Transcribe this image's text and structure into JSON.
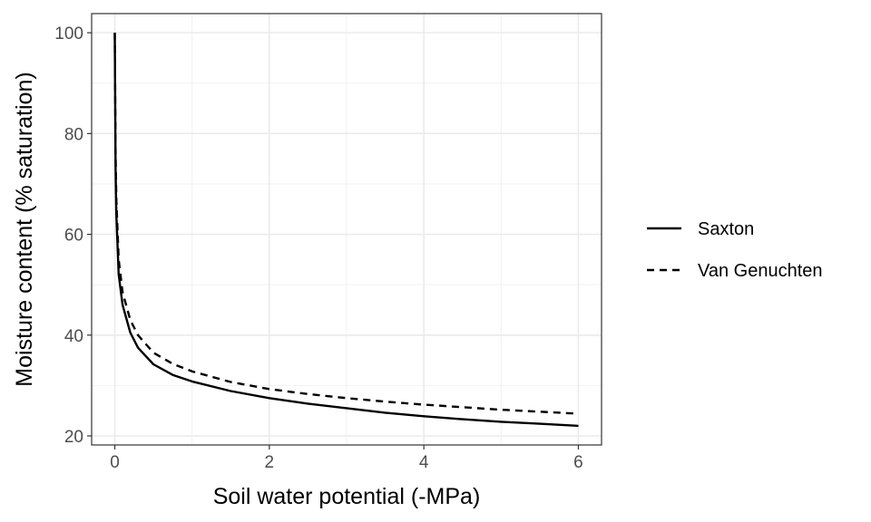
{
  "chart_data": {
    "type": "line",
    "title": "",
    "xlabel": "Soil water potential (-MPa)",
    "ylabel": "Moisture content (% saturation)",
    "xlim": [
      -0.3,
      6.3
    ],
    "ylim": [
      18.2,
      103.8
    ],
    "x_ticks": [
      0,
      2,
      4,
      6
    ],
    "x_tick_labels": [
      "0",
      "2",
      "4",
      "6"
    ],
    "y_ticks": [
      20,
      40,
      60,
      80,
      100
    ],
    "y_tick_labels": [
      "20",
      "40",
      "60",
      "80",
      "100"
    ],
    "grid": true,
    "legend_position": "right",
    "series": [
      {
        "name": "Saxton",
        "line_style": "solid",
        "color": "#000000",
        "x": [
          0,
          0.01,
          0.02,
          0.05,
          0.1,
          0.2,
          0.3,
          0.5,
          0.75,
          1,
          1.5,
          2,
          2.5,
          3,
          3.5,
          4,
          4.5,
          5,
          5.5,
          6
        ],
        "y": [
          100,
          73,
          64,
          52,
          46,
          40.5,
          37.5,
          34.2,
          32.1,
          30.8,
          28.9,
          27.5,
          26.4,
          25.5,
          24.6,
          23.9,
          23.3,
          22.8,
          22.4,
          22.0
        ]
      },
      {
        "name": "Van Genuchten",
        "line_style": "dashed",
        "color": "#000000",
        "x": [
          0,
          0.01,
          0.02,
          0.05,
          0.1,
          0.2,
          0.3,
          0.5,
          0.75,
          1,
          1.5,
          2,
          2.5,
          3,
          3.5,
          4,
          4.5,
          5,
          5.5,
          6
        ],
        "y": [
          100,
          76,
          67,
          55,
          48.5,
          43,
          40,
          36.5,
          34.3,
          32.8,
          30.7,
          29.3,
          28.3,
          27.5,
          26.8,
          26.2,
          25.7,
          25.2,
          24.8,
          24.4
        ]
      }
    ]
  }
}
